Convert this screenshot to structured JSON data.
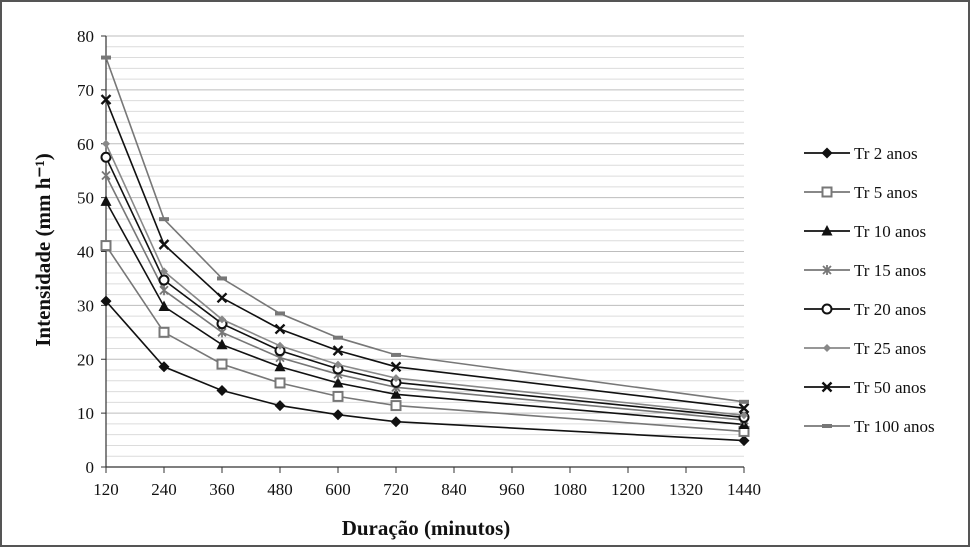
{
  "chart_data": {
    "type": "line",
    "xlabel": "Duração (minutos)",
    "ylabel": "Intensidade (mm h⁻¹)",
    "x_ticks": [
      "120",
      "240",
      "360",
      "480",
      "600",
      "720",
      "840",
      "960",
      "1080",
      "1200",
      "1320",
      "1440"
    ],
    "y_ticks": [
      "0",
      "10",
      "20",
      "30",
      "40",
      "50",
      "60",
      "70",
      "80"
    ],
    "xlim": [
      120,
      1440
    ],
    "ylim": [
      0,
      80
    ],
    "grid": "horizontal",
    "legend_position": "right",
    "x": [
      120,
      240,
      360,
      480,
      600,
      720,
      1440
    ],
    "series": [
      {
        "name": "Tr 2 anos",
        "marker": "diamond",
        "color": "#111111",
        "values": [
          30.8,
          18.6,
          14.2,
          11.4,
          9.7,
          8.4,
          4.9
        ]
      },
      {
        "name": "Tr 5 anos",
        "marker": "square-open",
        "color": "#777777",
        "values": [
          41.1,
          25.0,
          19.1,
          15.6,
          13.1,
          11.4,
          6.6
        ]
      },
      {
        "name": "Tr 10 anos",
        "marker": "triangle",
        "color": "#111111",
        "values": [
          49.3,
          29.8,
          22.7,
          18.6,
          15.6,
          13.5,
          7.9
        ]
      },
      {
        "name": "Tr 15 anos",
        "marker": "asterisk",
        "color": "#777777",
        "values": [
          54.1,
          32.8,
          25.0,
          20.3,
          17.2,
          14.8,
          8.7
        ]
      },
      {
        "name": "Tr 20 anos",
        "marker": "circle-open",
        "color": "#111111",
        "values": [
          57.5,
          34.7,
          26.6,
          21.6,
          18.2,
          15.7,
          9.2
        ]
      },
      {
        "name": "Tr 25 anos",
        "marker": "small-diamond",
        "color": "#888888",
        "values": [
          60.0,
          36.3,
          27.4,
          22.5,
          19.0,
          16.5,
          9.6
        ]
      },
      {
        "name": "Tr 50 anos",
        "marker": "x",
        "color": "#111111",
        "values": [
          68.2,
          41.3,
          31.4,
          25.6,
          21.6,
          18.6,
          10.9
        ]
      },
      {
        "name": "Tr 100 anos",
        "marker": "dash",
        "color": "#777777",
        "values": [
          76.0,
          46.0,
          35.0,
          28.5,
          24.0,
          20.8,
          12.1
        ]
      }
    ]
  }
}
